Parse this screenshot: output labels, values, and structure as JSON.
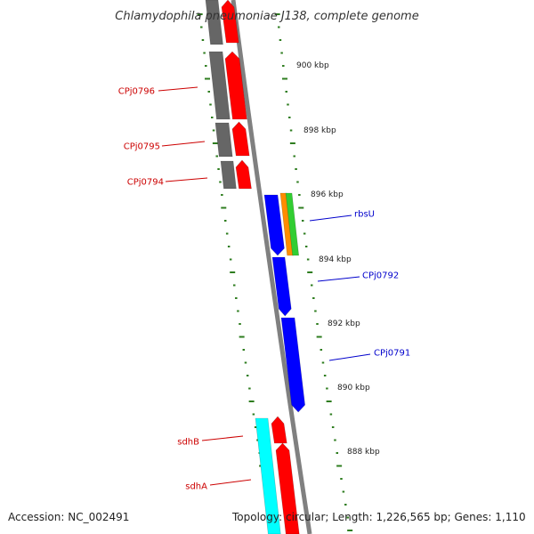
{
  "title": "Chlamydophila pneumoniae J138, complete genome",
  "accession": "Accession: NC_002491",
  "summary": "Topology: circular; Length: 1,226,565 bp; Genes: 1,110",
  "colors": {
    "backbone": "#808080",
    "tick": "#2e7d1f",
    "reverse_gene": "#ff0000",
    "reverse_cds": "#666666",
    "forward_cds": "#0000ff",
    "forward_rna_a": "#ff8c00",
    "forward_rna_b": "#32cd32",
    "forward_cyan": "#00ffff",
    "label_reverse": "#cc0000",
    "label_forward": "#0000cc"
  },
  "kbp_labels": [
    "900 kbp",
    "898 kbp",
    "896 kbp",
    "894 kbp",
    "892 kbp",
    "890 kbp",
    "888 kbp"
  ],
  "gene_labels": [
    {
      "text": "CPj0796",
      "strand": "reverse"
    },
    {
      "text": "CPj0795",
      "strand": "reverse"
    },
    {
      "text": "CPj0794",
      "strand": "reverse"
    },
    {
      "text": "rbsU",
      "strand": "forward"
    },
    {
      "text": "CPj0792",
      "strand": "forward"
    },
    {
      "text": "CPj0791",
      "strand": "forward"
    },
    {
      "text": "sdhB",
      "strand": "reverse"
    },
    {
      "text": "sdhA",
      "strand": "reverse"
    }
  ]
}
